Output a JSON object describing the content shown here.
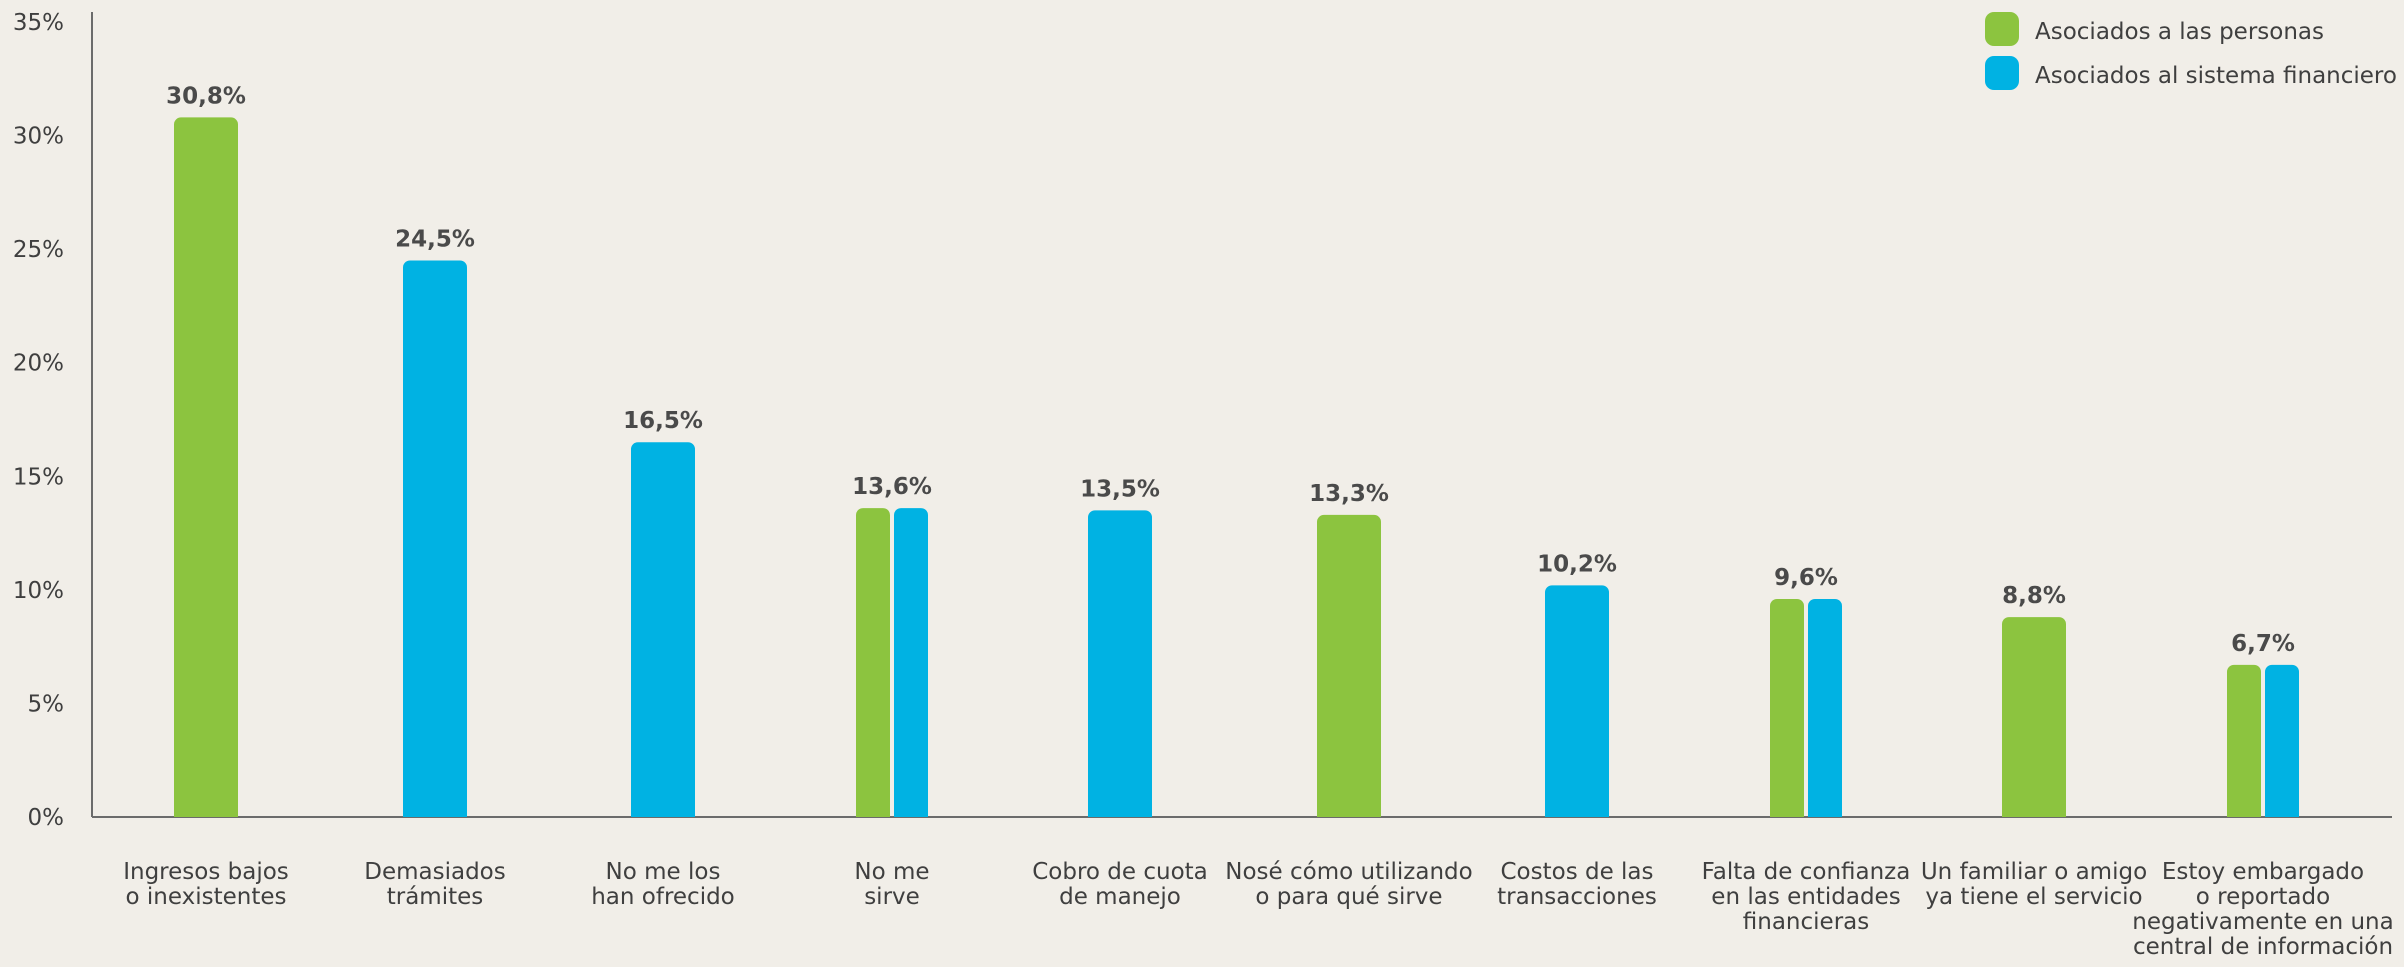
{
  "chart_data": {
    "type": "bar",
    "ylim": [
      0,
      35
    ],
    "yticks": [
      0,
      5,
      10,
      15,
      20,
      25,
      30,
      35
    ],
    "ytick_labels": [
      "0%",
      "5%",
      "10%",
      "15%",
      "20%",
      "25%",
      "30%",
      "35%"
    ],
    "grid": false,
    "legend": {
      "placement": "top-right",
      "items": [
        {
          "name": "Asociados a las personas",
          "color": "#8cc43f"
        },
        {
          "name": "Asociados al sistema financiero",
          "color": "#00b2e3"
        }
      ]
    },
    "categories": [
      {
        "lines": [
          "Ingresos bajos",
          "o inexistentes"
        ],
        "value": 30.8,
        "label": "30,8%",
        "series": [
          "personas"
        ]
      },
      {
        "lines": [
          "Demasiados",
          "trámites"
        ],
        "value": 24.5,
        "label": "24,5%",
        "series": [
          "financiero"
        ]
      },
      {
        "lines": [
          "No me los",
          "han ofrecido"
        ],
        "value": 16.5,
        "label": "16,5%",
        "series": [
          "financiero"
        ]
      },
      {
        "lines": [
          "No me",
          "sirve"
        ],
        "value": 13.6,
        "label": "13,6%",
        "series": [
          "personas",
          "financiero"
        ]
      },
      {
        "lines": [
          "Cobro de cuota",
          "de manejo"
        ],
        "value": 13.5,
        "label": "13,5%",
        "series": [
          "financiero"
        ]
      },
      {
        "lines": [
          "Nosé cómo utilizando",
          "o para qué sirve"
        ],
        "value": 13.3,
        "label": "13,3%",
        "series": [
          "personas"
        ]
      },
      {
        "lines": [
          "Costos de las",
          "transacciones"
        ],
        "value": 10.2,
        "label": "10,2%",
        "series": [
          "financiero"
        ]
      },
      {
        "lines": [
          "Falta de confianza",
          "en las entidades",
          "financieras"
        ],
        "value": 9.6,
        "label": "9,6%",
        "series": [
          "personas",
          "financiero"
        ]
      },
      {
        "lines": [
          "Un familiar o amigo",
          "ya tiene el servicio"
        ],
        "value": 8.8,
        "label": "8,8%",
        "series": [
          "personas"
        ]
      },
      {
        "lines": [
          "Estoy embargado",
          "o reportado",
          "negativamente en una",
          "central de información"
        ],
        "value": 6.7,
        "label": "6,7%",
        "series": [
          "personas",
          "financiero"
        ]
      }
    ],
    "colors": {
      "personas": "#8cc43f",
      "financiero": "#00b2e3",
      "axis": "#6b6b6b",
      "text": "#3f3f3f",
      "label": "#4a4a4a"
    }
  }
}
